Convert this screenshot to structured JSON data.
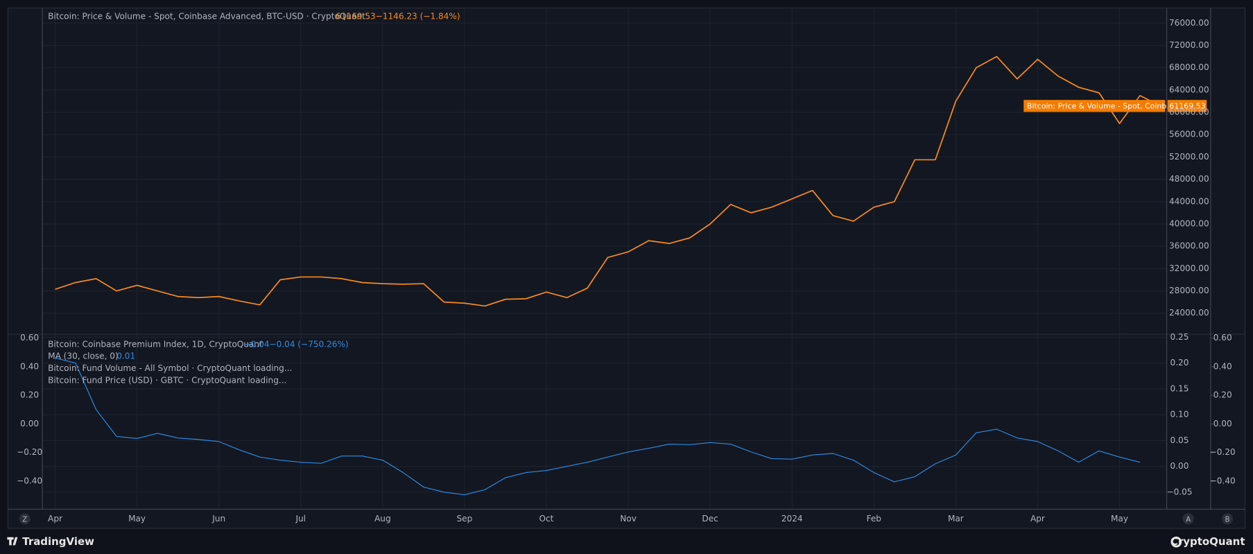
{
  "chart_data": [
    {
      "type": "line",
      "change_label": "−1146.23 (−1.84%)",
      "price_tag": "Bitcoin: Price & Volume - Spot, Coinb...",
      "categories": [
        "Apr",
        null,
        null,
        null,
        "May",
        null,
        null,
        null,
        "Jun",
        null,
        null,
        null,
        "Jul",
        null,
        null,
        null,
        "Aug",
        null,
        null,
        null,
        "Sep",
        null,
        null,
        null,
        "Oct",
        null,
        null,
        null,
        "Nov",
        null,
        null,
        null,
        "Dec",
        null,
        null,
        null,
        "2024",
        null,
        null,
        null,
        "Feb",
        null,
        null,
        null,
        "Mar",
        null,
        null,
        null,
        "Apr",
        null,
        null,
        null,
        "May",
        null,
        null
      ],
      "series": [
        {
          "name": "Bitcoin: Price & Volume - Spot, Coinbase Advanced, BTC-USD · CryptoQuant",
          "color": "#f68b1f",
          "values": [
            28300,
            29500,
            30200,
            28000,
            29000,
            28000,
            27000,
            26800,
            27000,
            26200,
            25500,
            30000,
            30500,
            30500,
            30200,
            29500,
            29300,
            29200,
            29300,
            26000,
            25800,
            25300,
            26500,
            26600,
            27800,
            26800,
            28500,
            34000,
            35000,
            37000,
            36500,
            37500,
            40000,
            43500,
            42000,
            43000,
            44500,
            46000,
            41500,
            40500,
            43000,
            44000,
            51500,
            51500,
            62000,
            68000,
            70000,
            66000,
            69500,
            66500,
            64500,
            63500,
            58000,
            63000,
            61169.53
          ]
        }
      ],
      "ylim": [
        20250,
        78700
      ],
      "yticks": [
        {
          "value": 24000,
          "label": "24000.00"
        },
        {
          "value": 28000,
          "label": "28000.00"
        },
        {
          "value": 32000,
          "label": "32000.00"
        },
        {
          "value": 36000,
          "label": "36000.00"
        },
        {
          "value": 40000,
          "label": "40000.00"
        },
        {
          "value": 44000,
          "label": "44000.00"
        },
        {
          "value": 48000,
          "label": "48000.00"
        },
        {
          "value": 52000,
          "label": "52000.00"
        },
        {
          "value": 56000,
          "label": "56000.00"
        },
        {
          "value": 60000,
          "label": "60000.00"
        },
        {
          "value": 64000,
          "label": "64000.00"
        },
        {
          "value": 68000,
          "label": "68000.00"
        },
        {
          "value": 72000,
          "label": "72000.00"
        },
        {
          "value": 76000,
          "label": "76000.00"
        }
      ],
      "grid": true
    },
    {
      "type": "line",
      "title": "Bitcoin: Coinbase Premium Index, 1D, CryptoQuant",
      "title_values": [
        "−0.04",
        "−0.04 (−750.26%)"
      ],
      "notes": [
        "Bitcoin: Fund Volume - All Symbol · CryptoQuant loading...",
        "Bitcoin: Fund Price (USD) · GBTC · CryptoQuant loading..."
      ],
      "categories": [
        "Apr",
        null,
        null,
        null,
        "May",
        null,
        null,
        null,
        "Jun",
        null,
        null,
        null,
        "Jul",
        null,
        null,
        null,
        "Aug",
        null,
        null,
        null,
        "Sep",
        null,
        null,
        null,
        "Oct",
        null,
        null,
        null,
        "Nov",
        null,
        null,
        null,
        "Dec",
        null,
        null,
        null,
        "2024",
        null,
        null,
        null,
        "Feb",
        null,
        null,
        null,
        "Mar",
        null,
        null,
        null,
        "Apr",
        null,
        null,
        null,
        "May",
        null,
        null
      ],
      "series": [
        {
          "name": "MA (30, close, 0)",
          "last_label": "0.01",
          "color": "#2f8de4",
          "values": [
            0.21,
            0.2,
            0.11,
            0.058,
            0.054,
            0.064,
            0.055,
            0.052,
            0.048,
            0.032,
            0.018,
            0.012,
            0.008,
            0.006,
            0.02,
            0.02,
            0.012,
            -0.012,
            -0.04,
            -0.05,
            -0.055,
            -0.045,
            -0.022,
            -0.012,
            -0.008,
            0.0,
            0.008,
            0.018,
            0.028,
            0.035,
            0.043,
            0.042,
            0.046,
            0.043,
            0.028,
            0.015,
            0.014,
            0.022,
            0.025,
            0.012,
            -0.012,
            -0.03,
            -0.02,
            0.005,
            0.022,
            0.065,
            0.072,
            0.055,
            0.048,
            0.03,
            0.008,
            0.03,
            0.018,
            0.008,
            null
          ]
        }
      ],
      "ylim": [
        -0.083,
        0.256
      ],
      "yticks": [
        {
          "value": -0.05,
          "label": "−0.05"
        },
        {
          "value": 0,
          "label": "0.00"
        },
        {
          "value": 0.05,
          "label": "0.05"
        },
        {
          "value": 0.1,
          "label": "0.10"
        },
        0.15,
        {
          "value": 0.2,
          "label": "0.20"
        },
        0.25
      ],
      "y2lim": [
        -0.596,
        0.628
      ],
      "y2ticks": [
        {
          "value": -0.4,
          "label": "−0.40"
        },
        {
          "value": -0.2,
          "label": "−0.20"
        },
        {
          "value": 0,
          "label": "0.00"
        },
        {
          "value": 0.2,
          "label": "0.20"
        },
        {
          "value": 0.4,
          "label": "0.40"
        },
        {
          "value": 0.6,
          "label": "0.60"
        }
      ],
      "grid": true
    }
  ],
  "ui": {
    "buttons": [
      "Z",
      "A",
      "B"
    ],
    "brand_left": "TradingView",
    "brand_right": "CryptoQuant"
  }
}
